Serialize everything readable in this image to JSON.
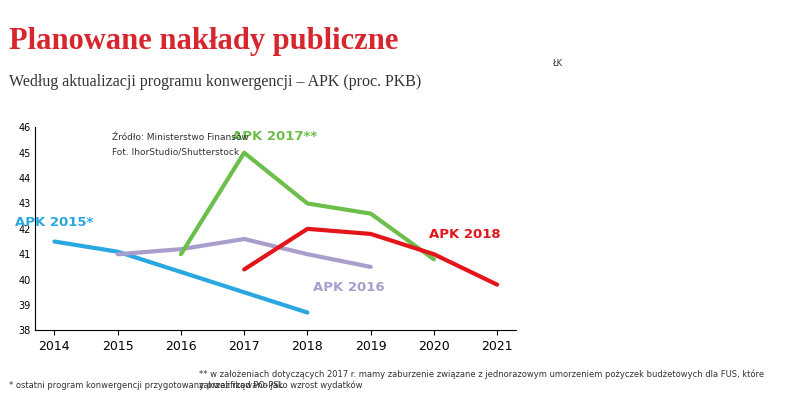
{
  "chart_data": {
    "type": "line",
    "title": "Planowane nakłady publiczne",
    "subtitle": "Według aktualizacji programu konwergencji – APK (proc. PKB)",
    "annotations": [
      "Źródło: Ministerstwo Finansów",
      "Fot. IhorStudio/Shutterstock"
    ],
    "credit": "ŁK",
    "footnotes": [
      "* ostatni program konwergencji przygotowany przez rząd PO-PSL",
      "** w założeniach dotyczących 2017 r. mamy zaburzenie związane z jednorazowym umorzeniem pożyczek budżetowych dla FUS, które zakwalifikowano jako wzrost wydatków"
    ],
    "x": [
      2014,
      2015,
      2016,
      2017,
      2018,
      2019,
      2020,
      2021
    ],
    "series": [
      {
        "name": "APK 2015*",
        "color": "#2aa7e0",
        "values": [
          41.5,
          41.1,
          40.3,
          39.5,
          38.7,
          null,
          null,
          null
        ]
      },
      {
        "name": "APK 2016",
        "color": "#a99dcb",
        "values": [
          null,
          41.0,
          41.2,
          41.6,
          41.0,
          40.5,
          null,
          null
        ]
      },
      {
        "name": "APK 2017**",
        "color": "#6cbf4b",
        "values": [
          null,
          null,
          41.0,
          45.0,
          43.0,
          42.6,
          40.8,
          null
        ]
      },
      {
        "name": "APK 2018",
        "color": "#e3151a",
        "values": [
          null,
          null,
          null,
          40.4,
          42.0,
          41.8,
          41.0,
          39.8
        ]
      }
    ],
    "xlim": [
      2013.7,
      2021.3
    ],
    "xticks": [
      2014,
      2015,
      2016,
      2017,
      2018,
      2019,
      2020,
      2021
    ],
    "ylim": [
      38,
      46
    ],
    "yticks": [
      38,
      39,
      40,
      41,
      42,
      43,
      44,
      45,
      46
    ],
    "grid": false
  }
}
